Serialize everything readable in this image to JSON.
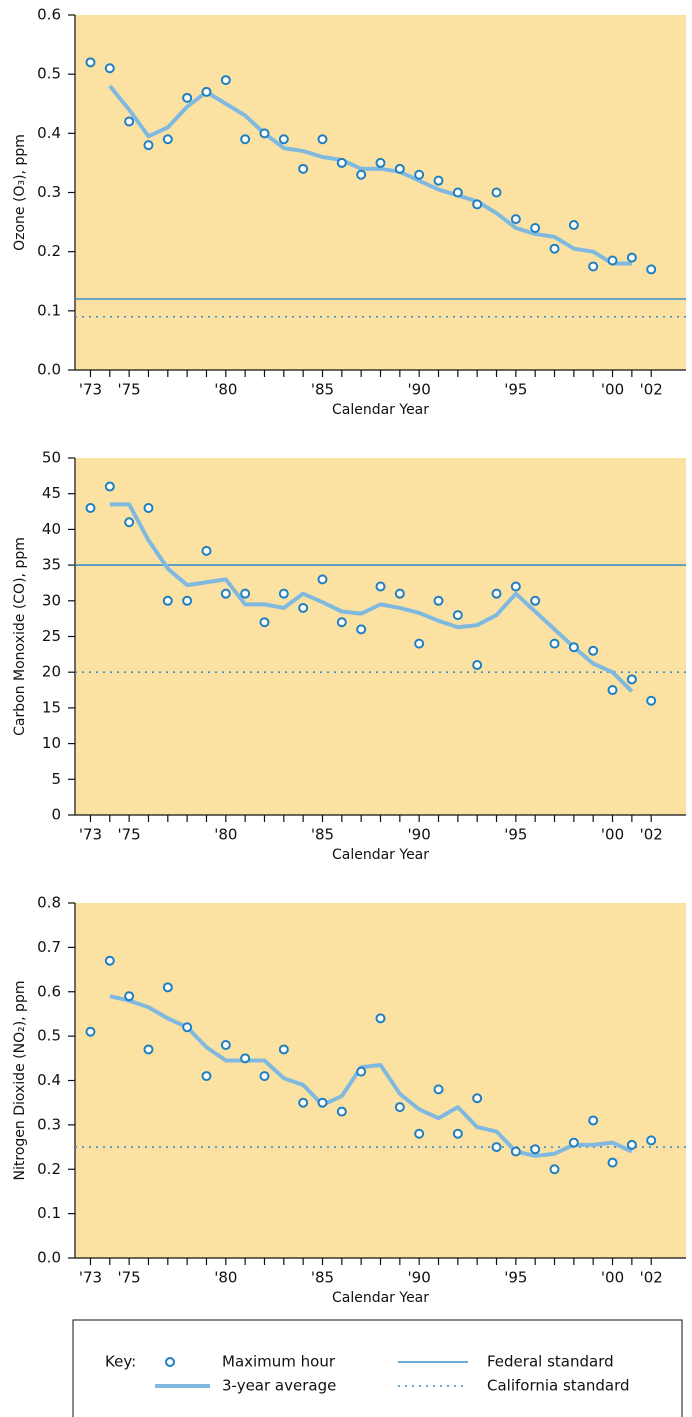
{
  "chart_data": [
    {
      "type": "scatter-line",
      "y_label": "Ozone (O₃), ppm",
      "x_label": "Calendar Year",
      "legend_title": "Key:",
      "xlim": [
        1972.2,
        2003.8
      ],
      "ylim": [
        0,
        0.6
      ],
      "yticks": [
        {
          "value": 0,
          "label": "0.0"
        },
        0.1,
        0.2,
        0.3,
        0.4,
        0.5,
        0.6
      ],
      "xticks": [
        {
          "value": 1973,
          "label": "'73"
        },
        {
          "value": 1975,
          "label": "'75"
        },
        {
          "value": 1980,
          "label": "'80"
        },
        {
          "value": 1985,
          "label": "'85"
        },
        {
          "value": 1990,
          "label": "'90"
        },
        {
          "value": 1995,
          "label": "'95"
        },
        {
          "value": 2000,
          "label": "'00"
        },
        {
          "value": 2002,
          "label": "'02"
        }
      ],
      "xminorticks": [
        1973,
        1974,
        1975,
        1976,
        1977,
        1978,
        1979,
        1980,
        1981,
        1982,
        1983,
        1984,
        1985,
        1986,
        1987,
        1988,
        1989,
        1990,
        1991,
        1992,
        1993,
        1994,
        1995,
        1996,
        1997,
        1998,
        1999,
        2000,
        2001,
        2002
      ],
      "series": [
        {
          "name": "Maximum hour",
          "color": "#1f7fc0",
          "marker": "circle",
          "x": [
            1973,
            1974,
            1975,
            1976,
            1977,
            1978,
            1979,
            1980,
            1981,
            1982,
            1983,
            1984,
            1985,
            1986,
            1987,
            1988,
            1989,
            1990,
            1991,
            1992,
            1993,
            1994,
            1995,
            1996,
            1997,
            1998,
            1999,
            2000,
            2001,
            2002
          ],
          "values": [
            0.52,
            0.51,
            0.42,
            0.38,
            0.39,
            0.46,
            0.47,
            0.49,
            0.39,
            0.4,
            0.39,
            0.34,
            0.39,
            0.35,
            0.33,
            0.35,
            0.34,
            0.33,
            0.32,
            0.3,
            0.28,
            0.3,
            0.255,
            0.24,
            0.205,
            0.245,
            0.175,
            0.185,
            0.19,
            0.17
          ]
        },
        {
          "name": "3-year average",
          "color": "#80b9e0",
          "marker": "line",
          "x": [
            1974,
            1975,
            1976,
            1977,
            1978,
            1979,
            1980,
            1981,
            1982,
            1983,
            1984,
            1985,
            1986,
            1987,
            1988,
            1989,
            1990,
            1991,
            1992,
            1993,
            1994,
            1995,
            1996,
            1997,
            1998,
            1999,
            2000,
            2001
          ],
          "values": [
            0.48,
            0.44,
            0.395,
            0.41,
            0.445,
            0.47,
            0.45,
            0.43,
            0.4,
            0.375,
            0.37,
            0.36,
            0.355,
            0.34,
            0.34,
            0.335,
            0.32,
            0.305,
            0.295,
            0.285,
            0.265,
            0.24,
            0.23,
            0.225,
            0.205,
            0.2,
            0.18,
            0.18
          ]
        }
      ],
      "reference_lines": [
        {
          "name": "Federal standard",
          "value": 0.12,
          "style": "solid",
          "color": "#3a8fc8"
        },
        {
          "name": "California standard",
          "value": 0.09,
          "style": "dotted",
          "color": "#3a8fc8"
        }
      ]
    },
    {
      "type": "scatter-line",
      "y_label": "Carbon Monoxide (CO), ppm",
      "x_label": "Calendar Year",
      "xlim": [
        1972.2,
        2003.8
      ],
      "ylim": [
        0,
        50
      ],
      "yticks": [
        0,
        5,
        10,
        15,
        20,
        25,
        30,
        35,
        40,
        45,
        50
      ],
      "xticks": [
        {
          "value": 1973,
          "label": "'73"
        },
        {
          "value": 1975,
          "label": "'75"
        },
        {
          "value": 1980,
          "label": "'80"
        },
        {
          "value": 1985,
          "label": "'85"
        },
        {
          "value": 1990,
          "label": "'90"
        },
        {
          "value": 1995,
          "label": "'95"
        },
        {
          "value": 2000,
          "label": "'00"
        },
        {
          "value": 2002,
          "label": "'02"
        }
      ],
      "xminorticks": [
        1973,
        1974,
        1975,
        1976,
        1977,
        1978,
        1979,
        1980,
        1981,
        1982,
        1983,
        1984,
        1985,
        1986,
        1987,
        1988,
        1989,
        1990,
        1991,
        1992,
        1993,
        1994,
        1995,
        1996,
        1997,
        1998,
        1999,
        2000,
        2001,
        2002
      ],
      "series": [
        {
          "name": "Maximum hour",
          "color": "#1f7fc0",
          "marker": "circle",
          "x": [
            1973,
            1974,
            1975,
            1976,
            1977,
            1978,
            1979,
            1980,
            1981,
            1982,
            1983,
            1984,
            1985,
            1986,
            1987,
            1988,
            1989,
            1990,
            1991,
            1992,
            1993,
            1994,
            1995,
            1996,
            1997,
            1998,
            1999,
            2000,
            2001,
            2002
          ],
          "values": [
            43,
            46,
            41,
            43,
            30,
            30,
            37,
            31,
            31,
            27,
            31,
            29,
            33,
            27,
            26,
            32,
            31,
            24,
            30,
            28,
            21,
            31,
            32,
            30,
            24,
            23.5,
            23,
            17.5,
            19,
            16
          ]
        },
        {
          "name": "3-year average",
          "color": "#80b9e0",
          "marker": "line",
          "x": [
            1974,
            1975,
            1976,
            1977,
            1978,
            1979,
            1980,
            1981,
            1982,
            1983,
            1984,
            1985,
            1986,
            1987,
            1988,
            1989,
            1990,
            1991,
            1992,
            1993,
            1994,
            1995,
            1996,
            1997,
            1998,
            1999,
            2000,
            2001
          ],
          "values": [
            43.5,
            43.5,
            38.5,
            34.5,
            32.2,
            32.6,
            33,
            29.5,
            29.5,
            29,
            31,
            29.8,
            28.5,
            28.2,
            29.5,
            29,
            28.3,
            27.2,
            26.3,
            26.6,
            28,
            31,
            28.5,
            26,
            23.5,
            21.2,
            20,
            17.3
          ]
        }
      ],
      "reference_lines": [
        {
          "name": "Federal standard",
          "value": 35,
          "style": "solid",
          "color": "#3a8fc8"
        },
        {
          "name": "California standard",
          "value": 20,
          "style": "dotted",
          "color": "#3a8fc8"
        }
      ]
    },
    {
      "type": "scatter-line",
      "y_label": "Nitrogen Dioxide (NO₂), ppm",
      "x_label": "Calendar Year",
      "xlim": [
        1972.2,
        2003.8
      ],
      "ylim": [
        0,
        0.8
      ],
      "yticks": [
        {
          "value": 0,
          "label": "0.0"
        },
        0.1,
        0.2,
        0.3,
        0.4,
        0.5,
        0.6,
        0.7,
        0.8
      ],
      "xticks": [
        {
          "value": 1973,
          "label": "'73"
        },
        {
          "value": 1975,
          "label": "'75"
        },
        {
          "value": 1980,
          "label": "'80"
        },
        {
          "value": 1985,
          "label": "'85"
        },
        {
          "value": 1990,
          "label": "'90"
        },
        {
          "value": 1995,
          "label": "'95"
        },
        {
          "value": 2000,
          "label": "'00"
        },
        {
          "value": 2002,
          "label": "'02"
        }
      ],
      "xminorticks": [
        1973,
        1974,
        1975,
        1976,
        1977,
        1978,
        1979,
        1980,
        1981,
        1982,
        1983,
        1984,
        1985,
        1986,
        1987,
        1988,
        1989,
        1990,
        1991,
        1992,
        1993,
        1994,
        1995,
        1996,
        1997,
        1998,
        1999,
        2000,
        2001,
        2002
      ],
      "series": [
        {
          "name": "Maximum hour",
          "color": "#1f7fc0",
          "marker": "circle",
          "x": [
            1973,
            1974,
            1975,
            1976,
            1977,
            1978,
            1979,
            1980,
            1981,
            1982,
            1983,
            1984,
            1985,
            1986,
            1987,
            1988,
            1989,
            1990,
            1991,
            1992,
            1993,
            1994,
            1995,
            1996,
            1997,
            1998,
            1999,
            2000,
            2001,
            2002
          ],
          "values": [
            0.51,
            0.67,
            0.59,
            0.47,
            0.61,
            0.52,
            0.41,
            0.48,
            0.45,
            0.41,
            0.47,
            0.35,
            0.35,
            0.33,
            0.42,
            0.54,
            0.34,
            0.28,
            0.38,
            0.28,
            0.36,
            0.25,
            0.24,
            0.245,
            0.2,
            0.26,
            0.31,
            0.215,
            0.255,
            0.265
          ]
        },
        {
          "name": "3-year average",
          "color": "#80b9e0",
          "marker": "line",
          "x": [
            1974,
            1975,
            1976,
            1977,
            1978,
            1979,
            1980,
            1981,
            1982,
            1983,
            1984,
            1985,
            1986,
            1987,
            1988,
            1989,
            1990,
            1991,
            1992,
            1993,
            1994,
            1995,
            1996,
            1997,
            1998,
            1999,
            2000,
            2001
          ],
          "values": [
            0.59,
            0.58,
            0.565,
            0.54,
            0.52,
            0.475,
            0.445,
            0.445,
            0.445,
            0.405,
            0.39,
            0.345,
            0.365,
            0.43,
            0.435,
            0.37,
            0.335,
            0.315,
            0.34,
            0.295,
            0.285,
            0.24,
            0.23,
            0.235,
            0.255,
            0.255,
            0.26,
            0.24
          ]
        }
      ],
      "reference_lines": [
        {
          "name": "California standard",
          "value": 0.25,
          "style": "dotted",
          "color": "#3a8fc8"
        }
      ]
    }
  ]
}
